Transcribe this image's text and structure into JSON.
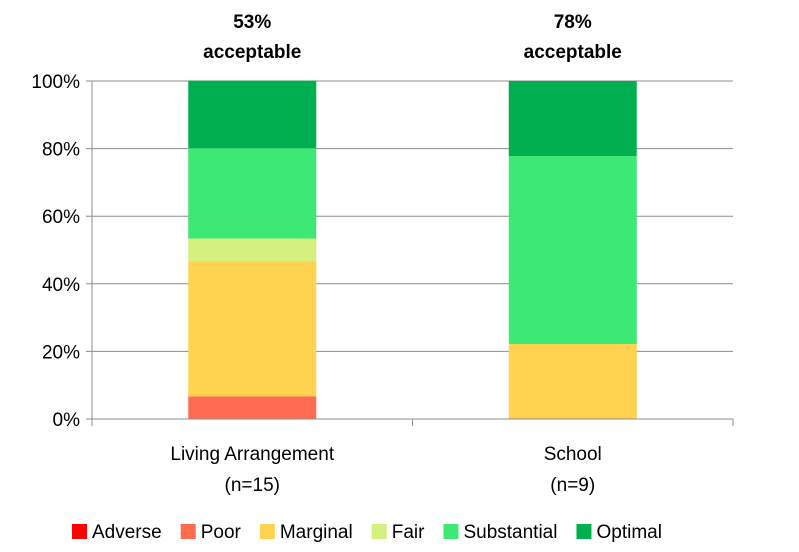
{
  "chart_data": {
    "type": "bar",
    "stacked": true,
    "categories": [
      {
        "label": "Living Arrangement",
        "sublabel": "(n=15)"
      },
      {
        "label": "School",
        "sublabel": "(n=9)"
      }
    ],
    "annotations": [
      {
        "value": "53%",
        "text": "acceptable"
      },
      {
        "value": "78%",
        "text": "acceptable"
      }
    ],
    "series": [
      {
        "name": "Adverse",
        "color": "#ff0000",
        "values": [
          0,
          0
        ]
      },
      {
        "name": "Poor",
        "color": "#ff6b4f",
        "values": [
          6.7,
          0
        ]
      },
      {
        "name": "Marginal",
        "color": "#ffd24f",
        "values": [
          40.0,
          22.2
        ]
      },
      {
        "name": "Fair",
        "color": "#d6f080",
        "values": [
          6.7,
          0
        ]
      },
      {
        "name": "Substantial",
        "color": "#3de874",
        "values": [
          26.7,
          55.6
        ]
      },
      {
        "name": "Optimal",
        "color": "#00b050",
        "values": [
          20.0,
          22.2
        ]
      }
    ],
    "yticks": [
      "0%",
      "20%",
      "40%",
      "60%",
      "80%",
      "100%"
    ],
    "ylim": [
      0,
      100
    ],
    "grid": true,
    "legend": "bottom"
  }
}
